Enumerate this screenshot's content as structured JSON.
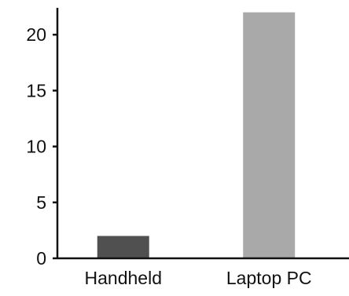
{
  "chart_data": {
    "type": "bar",
    "categories": [
      "Handheld",
      "Laptop PC"
    ],
    "values": [
      2,
      22
    ],
    "yticks": [
      "0",
      "5",
      "10",
      "15",
      "20"
    ],
    "ylim": [
      0,
      22.4
    ],
    "title": "",
    "xlabel": "",
    "ylabel": "",
    "grid": false,
    "bar_colors": [
      "#505050",
      "#a9a9a9"
    ],
    "axis_color": "#111111"
  }
}
